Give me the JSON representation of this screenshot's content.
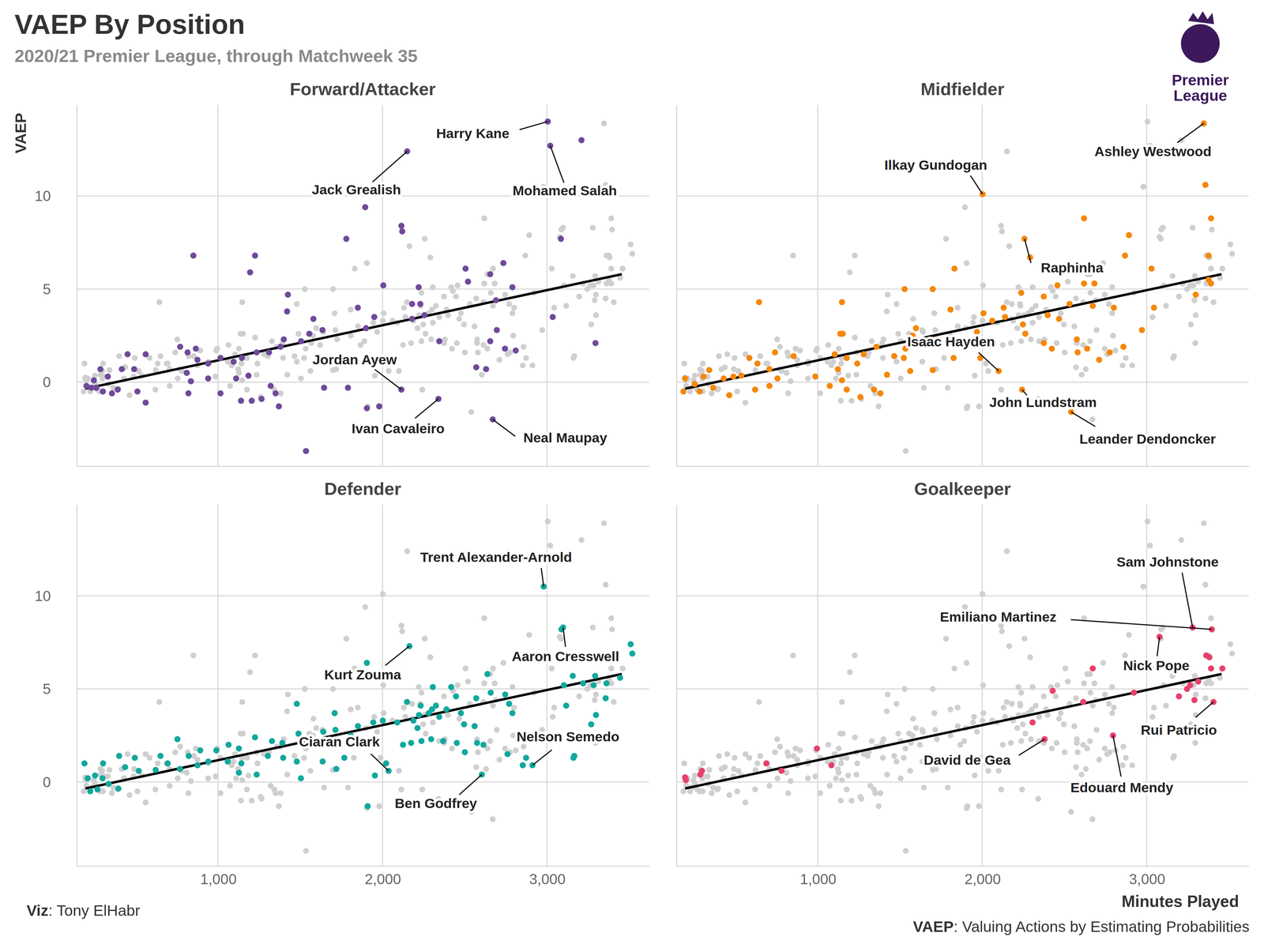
{
  "title": "VAEP By Position",
  "subtitle": "2020/21 Premier League, through Matchweek 35",
  "logo": [
    "Premier",
    "League"
  ],
  "credit": {
    "bold": "Viz",
    "rest": ": Tony ElHabr"
  },
  "source": {
    "bold": "VAEP",
    "rest": ": Valuing Actions by Estimating Probabilities"
  },
  "chart_data": [
    {
      "type": "scatter",
      "title": "Forward/Attacker",
      "color": "#6f4a9a",
      "grid": true,
      "tick_labels": "y",
      "ylabel": "VAEP",
      "xlim": [
        140,
        3620
      ],
      "ylim": [
        -4.5,
        14.9
      ],
      "xticks": [
        {
          "value": 1000,
          "label": "1,000"
        },
        {
          "value": 2000,
          "label": "2,000"
        },
        {
          "value": 3000,
          "label": "3,000"
        }
      ],
      "yticks": [
        0,
        5,
        10
      ],
      "x": [
        3005,
        2150,
        3020,
        2115,
        2340,
        2670,
        3210,
        1895,
        2115,
        2120,
        850,
        1225,
        1195,
        1780,
        3085,
        1425,
        2005,
        2220,
        2505,
        2735,
        2655,
        2520,
        2790,
        2690,
        3035,
        3295,
        2695,
        2745,
        2810,
        2655,
        2630,
        2570,
        2345,
        2180,
        2180,
        2255,
        2230,
        1850,
        1950,
        1900,
        1635,
        1555,
        1580,
        1420,
        1400,
        1505,
        1380,
        1310,
        1235,
        1145,
        1095,
        1015,
        940,
        865,
        815,
        770,
        875,
        810,
        820,
        835,
        560,
        450,
        490,
        415,
        330,
        285,
        355,
        230,
        260,
        560,
        510,
        1015,
        1140,
        1205,
        1265,
        1320,
        1350,
        1370,
        1645,
        1790,
        1535,
        1905,
        1980,
        1110,
        1185,
        940,
        200,
        245,
        300,
        390
      ],
      "values": [
        14.0,
        12.4,
        12.7,
        -0.4,
        -0.9,
        -2.0,
        13.0,
        9.4,
        8.4,
        8.1,
        6.8,
        6.8,
        5.9,
        7.7,
        7.7,
        4.7,
        5.2,
        5.1,
        6.1,
        6.4,
        5.8,
        5.4,
        5.1,
        4.4,
        3.5,
        2.1,
        2.8,
        1.8,
        1.7,
        2.2,
        0.7,
        0.8,
        2.2,
        4.2,
        3.4,
        3.6,
        4.2,
        4.0,
        3.5,
        2.9,
        2.8,
        2.6,
        3.4,
        3.8,
        2.3,
        2.2,
        1.9,
        1.6,
        1.6,
        1.3,
        1.1,
        1.3,
        1.0,
        1.8,
        1.6,
        1.9,
        1.2,
        0.5,
        -0.6,
        0.05,
        1.5,
        1.5,
        0.7,
        0.7,
        0.3,
        0.7,
        -0.6,
        -0.3,
        -0.3,
        -1.1,
        -0.5,
        -0.6,
        -1.0,
        -1.0,
        -0.9,
        -0.2,
        -0.6,
        -1.3,
        -0.3,
        -0.3,
        -3.7,
        -1.4,
        -1.3,
        0.2,
        0.35,
        0.2,
        -0.2,
        0.1,
        -0.5,
        -0.4
      ],
      "trend": {
        "x": [
          193,
          3455
        ],
        "values": [
          -0.35,
          5.8
        ]
      },
      "annotations": [
        {
          "text": "Harry Kane",
          "point": 0
        },
        {
          "text": "Jack Grealish",
          "point": 1
        },
        {
          "text": "Mohamed Salah",
          "point": 2
        },
        {
          "text": "Jordan Ayew",
          "point": 3
        },
        {
          "text": "Ivan Cavaleiro",
          "point": 4
        },
        {
          "text": "Neal Maupay",
          "point": 5
        }
      ]
    },
    {
      "type": "scatter",
      "title": "Midfielder",
      "color": "#f5870c",
      "grid": true,
      "tick_labels": false,
      "xlim": [
        140,
        3620
      ],
      "ylim": [
        -4.5,
        14.9
      ],
      "xticks": [
        {
          "value": 1000,
          "label": "1,000"
        },
        {
          "value": 2000,
          "label": "2,000"
        },
        {
          "value": 3000,
          "label": "3,000"
        }
      ],
      "yticks": [
        0,
        5,
        10
      ],
      "x": [
        3347,
        2002,
        2257,
        2100,
        2242,
        2540,
        3357,
        3391,
        2619,
        2892,
        3376,
        3376,
        3391,
        3298,
        2868,
        3029,
        2291,
        1831,
        1699,
        1528,
        643,
        1147,
        2457,
        2619,
        2682,
        2374,
        2237,
        2130,
        2531,
        2672,
        2800,
        2971,
        3044,
        2398,
        2467,
        2061,
        2139,
        1807,
        2007,
        2262,
        2247,
        2374,
        2423,
        2575,
        2580,
        2638,
        2775,
        2858,
        2711,
        1968,
        1724,
        1866,
        1826,
        1699,
        1597,
        1577,
        1533,
        1523,
        1562,
        1357,
        1465,
        1421,
        1342,
        1381,
        1259,
        1176,
        1137,
        1152,
        1103,
        1176,
        1279,
        1240,
        1122,
        1147,
        1073,
        985,
        853,
        740,
        706,
        755,
        633,
        584,
        535,
        487,
        428,
        619,
        706,
        340,
        306,
        252,
        193,
        183,
        281,
        364,
        462,
        1988
      ],
      "values": [
        13.9,
        10.1,
        7.7,
        0.6,
        -0.4,
        -1.6,
        10.6,
        8.8,
        8.8,
        7.9,
        6.8,
        5.5,
        5.3,
        4.7,
        6.8,
        6.1,
        6.7,
        6.1,
        5.0,
        5.0,
        4.3,
        4.3,
        5.2,
        5.3,
        5.3,
        4.6,
        4.8,
        4.0,
        4.2,
        4.1,
        4.0,
        2.8,
        4.0,
        3.6,
        3.4,
        3.3,
        3.5,
        3.9,
        3.7,
        2.6,
        3.1,
        2.1,
        1.8,
        2.3,
        1.6,
        1.8,
        1.6,
        1.9,
        1.2,
        2.7,
        2.3,
        2.0,
        1.3,
        0.65,
        2.9,
        2.5,
        1.8,
        1.3,
        0.6,
        1.9,
        1.4,
        0.4,
        -0.4,
        -0.6,
        -0.8,
        -0.4,
        2.6,
        2.6,
        1.5,
        1.3,
        1.5,
        1.0,
        0.7,
        0.1,
        -0.2,
        0.3,
        1.4,
        1.6,
        0.7,
        0.2,
        1.0,
        1.3,
        0.35,
        0.3,
        0.2,
        -0.4,
        -0.2,
        0.65,
        0.3,
        -0.1,
        0.2,
        -0.5,
        -0.5,
        -0.3,
        -0.7,
        1.3
      ],
      "trend": {
        "x": [
          193,
          3455
        ],
        "values": [
          -0.35,
          5.8
        ]
      },
      "annotations": [
        {
          "text": "Ashley Westwood",
          "point": 0
        },
        {
          "text": "Ilkay Gundogan",
          "point": 1
        },
        {
          "text": "Raphinha",
          "point": 2
        },
        {
          "text": "Isaac Hayden",
          "point": 3
        },
        {
          "text": "John Lundstram",
          "point": 4
        },
        {
          "text": "Leander Dendoncker",
          "point": 5
        }
      ]
    },
    {
      "type": "scatter",
      "title": "Defender",
      "color": "#12a89d",
      "grid": true,
      "tick_labels": true,
      "xlim": [
        140,
        3620
      ],
      "ylim": [
        -4.5,
        14.9
      ],
      "xticks": [
        {
          "value": 1000,
          "label": "1,000"
        },
        {
          "value": 2000,
          "label": "2,000"
        },
        {
          "value": 3000,
          "label": "3,000"
        }
      ],
      "yticks": [
        0,
        5,
        10
      ],
      "x": [
        2980,
        3098,
        2164,
        2037,
        2912,
        2604,
        3088,
        1905,
        3509,
        3519,
        3445,
        3362,
        3293,
        3284,
        3157,
        3103,
        3220,
        3357,
        2658,
        2746,
        2638,
        2570,
        2790,
        2770,
        3117,
        3298,
        3269,
        2418,
        2306,
        2389,
        2447,
        2149,
        2232,
        2301,
        2281,
        2325,
        2222,
        2188,
        2090,
        2002,
        1944,
        2345,
        2477,
        2496,
        2560,
        2213,
        2296,
        2369,
        2452,
        2174,
        2237,
        2575,
        2614,
        2501,
        2125,
        2760,
        2873,
        2853,
        3166,
        3161,
        2022,
        1954,
        1910,
        1807,
        1709,
        1714,
        1851,
        1890,
        1640,
        1621,
        1567,
        1768,
        1719,
        1636,
        1479,
        1489,
        1391,
        1303,
        1328,
        1396,
        1479,
        1504,
        1225,
        1127,
        1064,
        990,
        1059,
        1142,
        1235,
        1127,
        892,
        822,
        753,
        768,
        875,
        941,
        694,
        650,
        621,
        518,
        494,
        435,
        399,
        298,
        252,
        208,
        188,
        223,
        267,
        335,
        394,
        301
      ],
      "values": [
        10.5,
        8.3,
        7.3,
        0.6,
        0.9,
        0.4,
        8.2,
        6.4,
        7.4,
        6.9,
        5.6,
        5.3,
        5.7,
        5.2,
        5.7,
        5.2,
        5.3,
        4.5,
        4.8,
        4.7,
        5.8,
        4.5,
        3.7,
        4.2,
        4.1,
        3.6,
        3.1,
        5.1,
        5.1,
        3.9,
        4.6,
        4.3,
        4.1,
        3.9,
        3.7,
        4.1,
        3.6,
        3.3,
        3.2,
        3.3,
        3.2,
        3.5,
        3.7,
        3.1,
        3.0,
        2.9,
        2.3,
        2.2,
        2.1,
        2.1,
        2.2,
        2.1,
        2.0,
        1.6,
        2.0,
        1.5,
        1.3,
        0.9,
        1.4,
        1.3,
        1.0,
        0.35,
        -1.3,
        2.5,
        3.7,
        2.8,
        3.0,
        2.2,
        2.7,
        2.0,
        2.1,
        1.3,
        0.7,
        1.1,
        4.2,
        2.6,
        2.1,
        1.4,
        2.2,
        1.3,
        1.1,
        0.2,
        2.4,
        1.8,
        2.0,
        1.7,
        1.1,
        1.0,
        0.4,
        0.5,
        1.7,
        1.4,
        2.3,
        0.7,
        0.9,
        1.1,
        1.0,
        1.4,
        0.65,
        0.6,
        1.3,
        0.8,
        1.4,
        0.2,
        0.35,
        0.2,
        1.0,
        -0.5,
        -0.4,
        -0.1,
        -0.35,
        1.0
      ],
      "trend": {
        "x": [
          193,
          3455
        ],
        "values": [
          -0.35,
          5.8
        ]
      },
      "annotations": [
        {
          "text": "Trent Alexander-Arnold",
          "point": 0
        },
        {
          "text": "Aaron Cresswell",
          "point": 1
        },
        {
          "text": "Kurt Zouma",
          "point": 2
        },
        {
          "text": "Ciaran Clark",
          "point": 3
        },
        {
          "text": "Nelson Semedo",
          "point": 4
        },
        {
          "text": "Ben Godfrey",
          "point": 5
        }
      ]
    },
    {
      "type": "scatter",
      "title": "Goalkeeper",
      "color": "#e8406c",
      "grid": true,
      "tick_labels": "x",
      "xlabel": "Minutes Played",
      "xlim": [
        140,
        3620
      ],
      "ylim": [
        -4.5,
        14.9
      ],
      "xticks": [
        {
          "value": 1000,
          "label": "1,000"
        },
        {
          "value": 2000,
          "label": "2,000"
        },
        {
          "value": 3000,
          "label": "3,000"
        }
      ],
      "yticks": [
        0,
        5,
        10
      ],
      "x": [
        3279,
        3396,
        3078,
        3406,
        2379,
        2795,
        3381,
        3362,
        3460,
        3391,
        3313,
        2672,
        3264,
        3196,
        3245,
        3290,
        2922,
        2614,
        2428,
        2306,
        995,
        1083,
        780,
        687,
        296,
        286,
        193,
        198
      ],
      "values": [
        8.3,
        8.2,
        7.8,
        4.3,
        2.3,
        2.5,
        6.7,
        6.8,
        6.1,
        6.1,
        5.4,
        6.1,
        5.2,
        4.6,
        5.0,
        4.4,
        4.8,
        4.3,
        4.9,
        3.2,
        1.8,
        0.9,
        0.6,
        1.0,
        0.6,
        0.4,
        0.25,
        0.1
      ],
      "trend": {
        "x": [
          193,
          3455
        ],
        "values": [
          -0.35,
          5.8
        ]
      },
      "annotations": [
        {
          "text": "Sam Johnstone",
          "point": 0
        },
        {
          "text": "Emiliano Martinez",
          "point": 1
        },
        {
          "text": "Nick Pope",
          "point": 2
        },
        {
          "text": "Rui Patricio",
          "point": 3
        },
        {
          "text": "David de Gea",
          "point": 4
        },
        {
          "text": "Edouard Mendy",
          "point": 5
        }
      ]
    }
  ]
}
